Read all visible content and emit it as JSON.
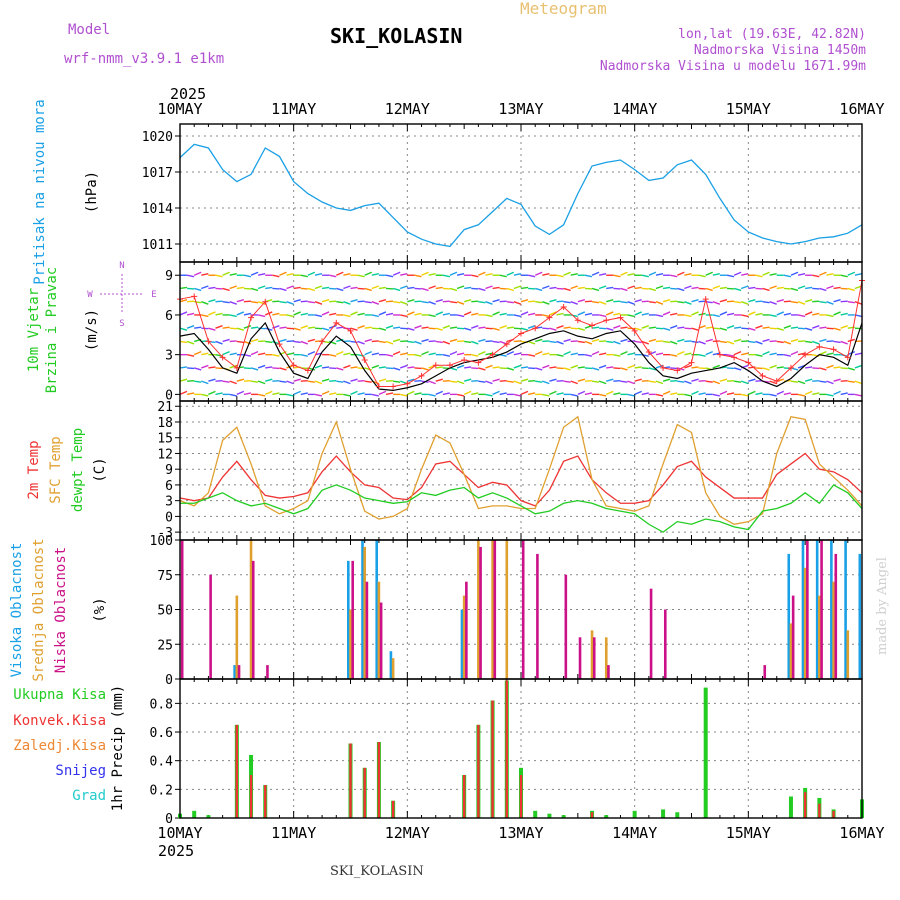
{
  "header": {
    "model_label": "Model",
    "model_name": "wrf-nmm_v3.9.1 e1km",
    "app_title": "Meteogram",
    "station": "SKI_KOLASIN",
    "location": "lon,lat (19.63E, 42.82N)",
    "altitude": "Nadmorska Visina 1450m",
    "model_altitude": "Nadmorska Visina u modelu 1671.99m",
    "year": "2025",
    "credit": "made by Angel",
    "footer_station": "SKI_KOLASIN"
  },
  "colors": {
    "pressure": "#1aa0e6",
    "wind_speed": "#000000",
    "wind_gust": "#ff3030",
    "temp_2m": "#ee3333",
    "temp_sfc": "#e0a030",
    "dewpt": "#22cc22",
    "cloud_high": "#1aa0e6",
    "cloud_mid": "#e0a030",
    "cloud_low": "#cc1188",
    "rain_total": "#22cc22",
    "rain_conv": "#ee3333",
    "rain_grid": "#ee8833",
    "snow": "#3333ee",
    "hail": "#22cccc",
    "purple": "#b050d0"
  },
  "time_axis": {
    "labels": [
      "10MAY",
      "11MAY",
      "12MAY",
      "13MAY",
      "14MAY",
      "15MAY",
      "16MAY"
    ],
    "start": "2025-05-10 00:00",
    "end": "2025-05-16 00:00"
  },
  "chart_data": [
    {
      "type": "line",
      "panel": "pressure",
      "ylabel": "Pritisak na nivou mora",
      "unit": "(hPa)",
      "ylim": [
        1009.5,
        1021
      ],
      "yticks": [
        1011,
        1014,
        1017,
        1020
      ],
      "x_hours": [
        0,
        3,
        6,
        9,
        12,
        15,
        18,
        21,
        24,
        27,
        30,
        33,
        36,
        39,
        42,
        45,
        48,
        51,
        54,
        57,
        60,
        63,
        66,
        69,
        72,
        75,
        78,
        81,
        84,
        87,
        90,
        93,
        96,
        99,
        102,
        105,
        108,
        111,
        114,
        117,
        120,
        123,
        126,
        129,
        132,
        135,
        138,
        141,
        144
      ],
      "series": [
        {
          "values": [
            1018.2,
            1019.3,
            1019.0,
            1017.2,
            1016.2,
            1016.8,
            1019.0,
            1018.3,
            1016.2,
            1015.2,
            1014.5,
            1014.0,
            1013.8,
            1014.2,
            1014.4,
            1013.2,
            1012.0,
            1011.4,
            1011.0,
            1010.8,
            1012.2,
            1012.6,
            1013.7,
            1014.8,
            1014.3,
            1012.5,
            1011.8,
            1012.6,
            1015.2,
            1017.5,
            1017.8,
            1018.0,
            1017.2,
            1016.3,
            1016.5,
            1017.6,
            1018.0,
            1016.8,
            1014.8,
            1013.0,
            1012.0,
            1011.5,
            1011.2,
            1011.0,
            1011.2,
            1011.5,
            1011.6,
            1011.9,
            1012.6
          ]
        }
      ]
    },
    {
      "type": "line",
      "panel": "wind",
      "ylabel": "10m Vjetar Brzina i Pravac",
      "unit": "(m/s)",
      "ylim": [
        -0.5,
        10
      ],
      "yticks": [
        0,
        3,
        6,
        9
      ],
      "compass": [
        "N",
        "W",
        "E",
        "S"
      ],
      "x_hours": [
        0,
        3,
        6,
        9,
        12,
        15,
        18,
        21,
        24,
        27,
        30,
        33,
        36,
        39,
        42,
        45,
        48,
        51,
        54,
        57,
        60,
        63,
        66,
        69,
        72,
        75,
        78,
        81,
        84,
        87,
        90,
        93,
        96,
        99,
        102,
        105,
        108,
        111,
        114,
        117,
        120,
        123,
        126,
        129,
        132,
        135,
        138,
        141,
        144
      ],
      "series": [
        {
          "name": "wind",
          "values": [
            4.4,
            4.6,
            3.4,
            2.0,
            1.6,
            4.2,
            5.4,
            3.2,
            1.6,
            1.2,
            3.2,
            4.4,
            3.6,
            1.8,
            0.4,
            0.3,
            0.5,
            0.8,
            1.4,
            2.0,
            2.4,
            2.6,
            2.8,
            3.2,
            3.8,
            4.2,
            4.6,
            4.8,
            4.4,
            4.2,
            4.6,
            4.8,
            3.8,
            2.4,
            1.4,
            1.2,
            1.6,
            1.8,
            2.0,
            2.4,
            1.8,
            1.0,
            0.6,
            1.2,
            2.2,
            3.0,
            2.8,
            2.2,
            5.4
          ]
        },
        {
          "name": "gust",
          "values": [
            7.2,
            7.4,
            4.0,
            2.8,
            2.0,
            5.8,
            7.0,
            3.8,
            2.2,
            1.8,
            4.0,
            5.4,
            4.8,
            2.6,
            0.6,
            0.6,
            0.8,
            1.4,
            2.2,
            2.2,
            2.6,
            2.4,
            3.0,
            3.8,
            4.6,
            5.0,
            5.8,
            6.6,
            5.6,
            5.2,
            5.6,
            5.8,
            4.8,
            3.2,
            2.0,
            1.8,
            2.4,
            7.2,
            3.0,
            2.8,
            2.4,
            1.4,
            1.0,
            2.0,
            3.0,
            3.6,
            3.4,
            2.8,
            8.6
          ]
        }
      ]
    },
    {
      "type": "line",
      "panel": "temperature",
      "ylabel": "2m Temp / SFC Temp / dewpt Temp",
      "legend": [
        "2m Temp",
        "SFC Temp",
        "dewpt Temp"
      ],
      "unit": "(C)",
      "ylim": [
        -4.5,
        22
      ],
      "yticks": [
        -3,
        0,
        3,
        6,
        9,
        12,
        15,
        18,
        21
      ],
      "x_hours": [
        0,
        3,
        6,
        9,
        12,
        15,
        18,
        21,
        24,
        27,
        30,
        33,
        36,
        39,
        42,
        45,
        48,
        51,
        54,
        57,
        60,
        63,
        66,
        69,
        72,
        75,
        78,
        81,
        84,
        87,
        90,
        93,
        96,
        99,
        102,
        105,
        108,
        111,
        114,
        117,
        120,
        123,
        126,
        129,
        132,
        135,
        138,
        141,
        144
      ],
      "series": [
        {
          "name": "2m Temp",
          "values": [
            3.5,
            3.0,
            3.5,
            7.5,
            10.5,
            7.0,
            4.0,
            3.5,
            3.8,
            4.5,
            8.5,
            11.5,
            8.5,
            6.0,
            5.5,
            3.5,
            3.2,
            5.5,
            10.0,
            10.5,
            8.0,
            5.5,
            6.5,
            6.0,
            3.0,
            2.0,
            5.0,
            10.5,
            11.5,
            7.0,
            4.5,
            2.5,
            2.5,
            3.0,
            6.0,
            9.5,
            10.5,
            7.5,
            5.5,
            3.5,
            3.5,
            3.5,
            8.0,
            10.0,
            12.0,
            9.0,
            8.5,
            7.0,
            4.5
          ]
        },
        {
          "name": "SFC Temp",
          "values": [
            3.0,
            2.0,
            4.5,
            14.5,
            17.0,
            10.0,
            2.0,
            0.5,
            1.5,
            3.0,
            12.0,
            18.0,
            9.0,
            1.0,
            -0.5,
            0.0,
            1.5,
            9.0,
            15.5,
            14.0,
            8.0,
            1.5,
            2.0,
            2.0,
            1.5,
            1.5,
            9.0,
            17.0,
            19.0,
            7.0,
            2.0,
            1.5,
            1.0,
            2.0,
            10.0,
            17.5,
            16.0,
            4.5,
            0.0,
            -1.5,
            -1.0,
            0.5,
            12.0,
            19.0,
            18.5,
            10.0,
            7.5,
            5.0,
            2.0
          ]
        },
        {
          "name": "dewpt Temp",
          "values": [
            2.5,
            2.5,
            3.5,
            4.5,
            3.0,
            2.0,
            2.5,
            1.5,
            0.5,
            1.5,
            5.0,
            6.0,
            5.0,
            3.5,
            3.0,
            2.5,
            2.8,
            4.5,
            4.0,
            5.0,
            5.5,
            3.5,
            4.5,
            3.5,
            2.0,
            0.5,
            1.0,
            2.5,
            3.0,
            2.5,
            1.5,
            1.0,
            0.5,
            -1.5,
            -3.0,
            -1.0,
            -1.5,
            -0.5,
            -1.0,
            -2.0,
            -2.5,
            1.0,
            1.5,
            2.5,
            4.5,
            2.5,
            6.0,
            4.5,
            1.5
          ]
        }
      ]
    },
    {
      "type": "bar",
      "panel": "cloud",
      "ylabel": "Visoka Oblacnost / Srednja Oblacnost / Niska Oblacnost",
      "legend": [
        "Visoka Oblacnost",
        "Srednja Oblacnost",
        "Niska Oblacnost"
      ],
      "unit": "(%)",
      "ylim": [
        0,
        100
      ],
      "yticks": [
        0,
        25,
        50,
        75,
        100
      ],
      "x_hours": [
        0,
        3,
        6,
        9,
        12,
        15,
        18,
        21,
        24,
        27,
        30,
        33,
        36,
        39,
        42,
        45,
        48,
        51,
        54,
        57,
        60,
        63,
        66,
        69,
        72,
        75,
        78,
        81,
        84,
        87,
        90,
        93,
        96,
        99,
        102,
        105,
        108,
        111,
        114,
        117,
        120,
        123,
        126,
        129,
        132,
        135,
        138,
        141,
        144
      ],
      "series": [
        {
          "name": "Visoka Oblacnost",
          "values": [
            0,
            0,
            0,
            0,
            10,
            0,
            0,
            0,
            0,
            0,
            0,
            0,
            85,
            100,
            100,
            20,
            0,
            0,
            0,
            0,
            50,
            0,
            0,
            0,
            0,
            0,
            0,
            0,
            0,
            0,
            0,
            0,
            0,
            0,
            0,
            0,
            0,
            0,
            0,
            0,
            0,
            0,
            0,
            90,
            100,
            100,
            100,
            100,
            90
          ]
        },
        {
          "name": "Srednja Oblacnost",
          "values": [
            0,
            0,
            0,
            0,
            60,
            100,
            0,
            0,
            0,
            0,
            0,
            0,
            50,
            95,
            70,
            15,
            0,
            0,
            0,
            0,
            60,
            100,
            100,
            100,
            0,
            0,
            0,
            0,
            0,
            35,
            30,
            0,
            0,
            0,
            0,
            0,
            0,
            0,
            0,
            0,
            0,
            0,
            0,
            40,
            80,
            60,
            70,
            35,
            0
          ]
        },
        {
          "name": "Niska Oblacnost",
          "values": [
            100,
            0,
            75,
            0,
            10,
            85,
            10,
            0,
            0,
            0,
            0,
            0,
            85,
            70,
            55,
            0,
            0,
            0,
            0,
            0,
            70,
            95,
            100,
            0,
            100,
            90,
            0,
            75,
            30,
            30,
            10,
            0,
            0,
            65,
            50,
            0,
            0,
            0,
            0,
            0,
            0,
            10,
            0,
            60,
            100,
            100,
            90,
            0,
            0
          ]
        }
      ]
    },
    {
      "type": "bar",
      "panel": "precipitation",
      "ylabel": "1hr Precip (mm)",
      "legend": [
        "Ukupna Kisa",
        "Konvek.Kisa",
        "Zaledj.Kisa",
        "Snijeg",
        "Grad"
      ],
      "ylim": [
        0,
        0.97
      ],
      "yticks": [
        0,
        0.2,
        0.4,
        0.6,
        0.8
      ],
      "x_hours": [
        0,
        3,
        6,
        9,
        12,
        15,
        18,
        21,
        24,
        27,
        30,
        33,
        36,
        39,
        42,
        45,
        48,
        51,
        54,
        57,
        60,
        63,
        66,
        69,
        72,
        75,
        78,
        81,
        84,
        87,
        90,
        93,
        96,
        99,
        102,
        105,
        108,
        111,
        114,
        117,
        120,
        123,
        126,
        129,
        132,
        135,
        138,
        141,
        144
      ],
      "series": [
        {
          "name": "Ukupna Kisa",
          "values": [
            0.03,
            0.05,
            0.02,
            0.0,
            0.65,
            0.44,
            0.23,
            0.0,
            0.0,
            0.0,
            0.0,
            0.0,
            0.52,
            0.35,
            0.53,
            0.12,
            0.0,
            0.0,
            0.0,
            0.0,
            0.3,
            0.65,
            0.82,
            0.96,
            0.35,
            0.05,
            0.03,
            0.02,
            0.0,
            0.05,
            0.02,
            0.0,
            0.05,
            0.0,
            0.06,
            0.04,
            0.0,
            0.91,
            0.0,
            0.0,
            0.0,
            0.0,
            0.0,
            0.15,
            0.21,
            0.14,
            0.06,
            0.0,
            0.13
          ]
        },
        {
          "name": "Konvek.Kisa",
          "values": [
            0.0,
            0.0,
            0.0,
            0.0,
            0.65,
            0.3,
            0.23,
            0.0,
            0.0,
            0.0,
            0.0,
            0.0,
            0.52,
            0.35,
            0.53,
            0.12,
            0.0,
            0.0,
            0.0,
            0.0,
            0.3,
            0.65,
            0.82,
            0.96,
            0.3,
            0.0,
            0.0,
            0.0,
            0.0,
            0.04,
            0.0,
            0.0,
            0.0,
            0.0,
            0.0,
            0.0,
            0.0,
            0.0,
            0.0,
            0.0,
            0.0,
            0.0,
            0.0,
            0.0,
            0.18,
            0.1,
            0.05,
            0.0,
            0.0
          ]
        }
      ]
    }
  ]
}
